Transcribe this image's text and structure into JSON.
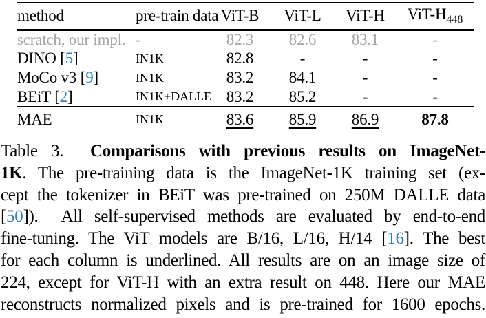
{
  "colors": {
    "blue": "#2d7fc1",
    "gray": "#a4a4aa",
    "ink": "#000000"
  },
  "table": {
    "headers": {
      "method": "method",
      "pretrain": "pre-train data",
      "vitb": "ViT-B",
      "vitl": "ViT-L",
      "vith": "ViT-H",
      "vith448_base": "ViT-H",
      "vith448_sub": "448"
    },
    "cite_open": "[",
    "cite_close": "]",
    "rows": [
      {
        "method": "scratch, our impl.",
        "pretrain": "-",
        "vitb": "82.3",
        "vitl": "82.6",
        "vith": "83.1",
        "vith448": "-"
      },
      {
        "method": "DINO",
        "cite": "5",
        "pretrain": "IN1K",
        "vitb": "82.8",
        "vitl": "-",
        "vith": "-",
        "vith448": "-"
      },
      {
        "method": "MoCo v3",
        "cite": "9",
        "pretrain": "IN1K",
        "vitb": "83.2",
        "vitl": "84.1",
        "vith": "-",
        "vith448": "-"
      },
      {
        "method": "BEiT",
        "cite": "2",
        "pretrain": "IN1K+DALLE",
        "vitb": "83.2",
        "vitl": "85.2",
        "vith": "-",
        "vith448": "-"
      },
      {
        "method": "MAE",
        "pretrain": "IN1K",
        "vitb": "83.6",
        "vitl": "85.9",
        "vith": "86.9",
        "vith448": "87.8"
      }
    ]
  },
  "caption": {
    "lines": [
      {
        "segs": [
          {
            "t": "Table 3.  "
          },
          {
            "t": "Comparisons with previous results on ImageNet-"
          }
        ]
      },
      {
        "segs": [
          {
            "t": "1K"
          },
          {
            "t": ". The pre-training data is the ImageNet-1K training set (ex-"
          }
        ]
      },
      {
        "segs": [
          {
            "t": "cept the tokenizer in BEiT was pre-trained on 250M DALLE data"
          }
        ]
      },
      {
        "segs": [
          {
            "t": "["
          },
          {
            "t": "50"
          },
          {
            "t": "]).  All self-supervised methods are evaluated by end-to-end"
          }
        ]
      },
      {
        "segs": [
          {
            "t": "fine-tuning. The ViT models are B/16, L/16, H/14 ["
          },
          {
            "t": "16"
          },
          {
            "t": "]. The best"
          }
        ]
      },
      {
        "segs": [
          {
            "t": "for each column is underlined. All results are on an image size of"
          }
        ]
      },
      {
        "segs": [
          {
            "t": "224, except for ViT-H with an extra result on 448. Here our MAE"
          }
        ]
      },
      {
        "segs": [
          {
            "t": "reconstructs normalized pixels and is pre-trained for 1600 epochs."
          }
        ]
      }
    ]
  }
}
